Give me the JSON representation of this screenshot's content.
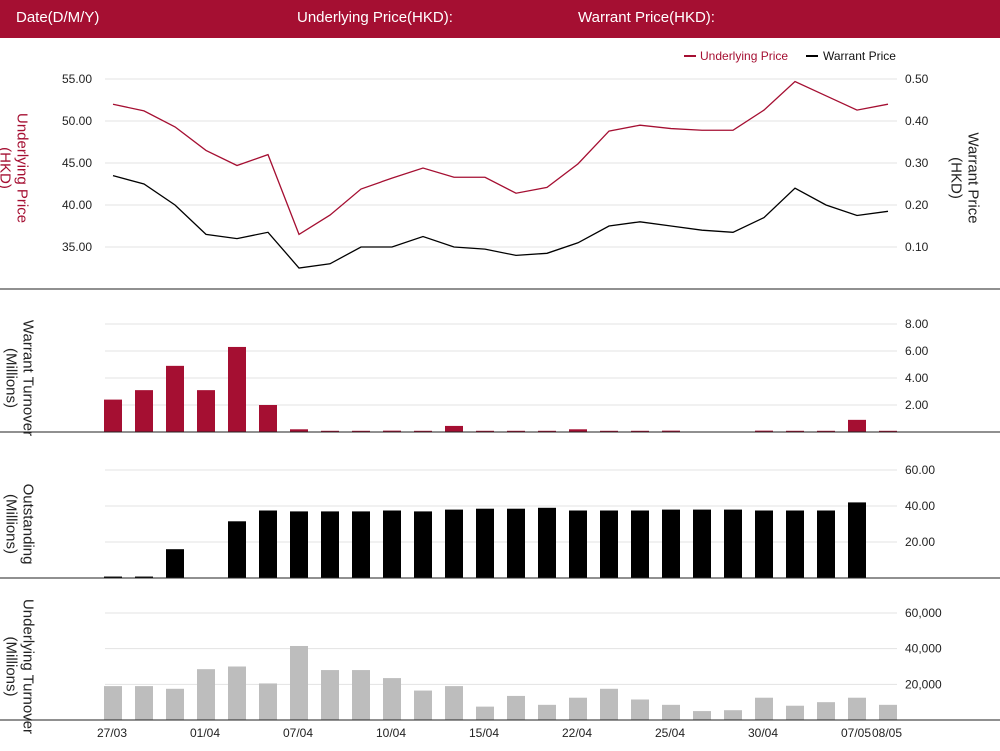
{
  "header": {
    "date_label": "Date(D/M/Y)",
    "underlying_label": "Underlying Price(HKD):",
    "warrant_label": "Warrant Price(HKD):"
  },
  "colors": {
    "brand": "#a50f32",
    "underlying": "#a50f32",
    "warrant": "#000000",
    "outstanding": "#000000",
    "underlying_turnover": "#bdbdbd",
    "grid": "#e3e3e3"
  },
  "chart_data": [
    {
      "type": "line",
      "legend": {
        "position": "top-right"
      },
      "x_tick_labels": [
        "27/03",
        "01/04",
        "07/04",
        "10/04",
        "15/04",
        "22/04",
        "25/04",
        "30/04",
        "07/05",
        "08/05"
      ],
      "x_tick_indices": [
        0,
        3,
        6,
        9,
        12,
        15,
        18,
        21,
        24,
        25
      ],
      "left_axis": {
        "label": "Underlying Price (HKD)",
        "ticks": [
          "35.00",
          "40.00",
          "45.00",
          "50.00",
          "55.00"
        ],
        "range": [
          31.2,
          57.5
        ]
      },
      "right_axis": {
        "label": "Warrant  Price (HKD)",
        "ticks": [
          "0.10",
          "0.20",
          "0.30",
          "0.40",
          "0.50"
        ],
        "range": [
          0.03,
          0.53
        ]
      },
      "series": [
        {
          "name": "Underlying Price",
          "axis": "left",
          "values": [
            52.0,
            51.2,
            49.3,
            46.5,
            44.7,
            46.0,
            36.5,
            38.8,
            41.9,
            43.2,
            44.4,
            43.3,
            43.3,
            41.4,
            42.1,
            44.9,
            48.8,
            49.5,
            49.1,
            48.9,
            48.9,
            51.3,
            54.7,
            53.0,
            51.3,
            52.0
          ]
        },
        {
          "name": "Warrant Price",
          "axis": "right",
          "values": [
            0.27,
            0.25,
            0.2,
            0.13,
            0.12,
            0.135,
            0.05,
            0.06,
            0.1,
            0.1,
            0.125,
            0.1,
            0.095,
            0.08,
            0.085,
            0.11,
            0.15,
            0.16,
            0.15,
            0.14,
            0.135,
            0.17,
            0.24,
            0.2,
            0.175,
            0.185
          ]
        }
      ]
    },
    {
      "type": "bar",
      "ylabel": "Warrant  Turnover (Millions)",
      "ticks": [
        "2.00",
        "4.00",
        "6.00",
        "8.00"
      ],
      "ylim": [
        0,
        9.0
      ],
      "series": [
        {
          "values": [
            2.4,
            3.1,
            4.9,
            3.1,
            6.3,
            2.0,
            0.2,
            0.05,
            0.05,
            0.1,
            0.05,
            0.45,
            0.05,
            0.05,
            0.05,
            0.2,
            0.05,
            0.05,
            0.1,
            0,
            0,
            0.1,
            0.05,
            0.05,
            0.9,
            0.05
          ]
        }
      ]
    },
    {
      "type": "bar",
      "ylabel": "Outstanding (Millions)",
      "ticks": [
        "20.00",
        "40.00",
        "60.00"
      ],
      "ylim": [
        0,
        67
      ],
      "series": [
        {
          "values": [
            0.8,
            0.8,
            16,
            0,
            31.5,
            37.5,
            37,
            37,
            37,
            37.5,
            37,
            38,
            38.5,
            38.5,
            39,
            37.5,
            37.5,
            37.5,
            38,
            38,
            38,
            37.5,
            37.5,
            37.5,
            42,
            0
          ]
        }
      ]
    },
    {
      "type": "bar",
      "ylabel": "Underlying Turnover (Millions)",
      "ticks": [
        "20,000",
        "40,000",
        "60,000"
      ],
      "ylim": [
        0,
        67000
      ],
      "series": [
        {
          "values": [
            19000,
            19000,
            17500,
            28500,
            30000,
            20500,
            41500,
            28000,
            28000,
            23500,
            16500,
            19000,
            7500,
            13500,
            8500,
            12500,
            17500,
            11500,
            8500,
            5000,
            5500,
            12500,
            8000,
            10000,
            12500,
            8500
          ]
        }
      ]
    }
  ]
}
